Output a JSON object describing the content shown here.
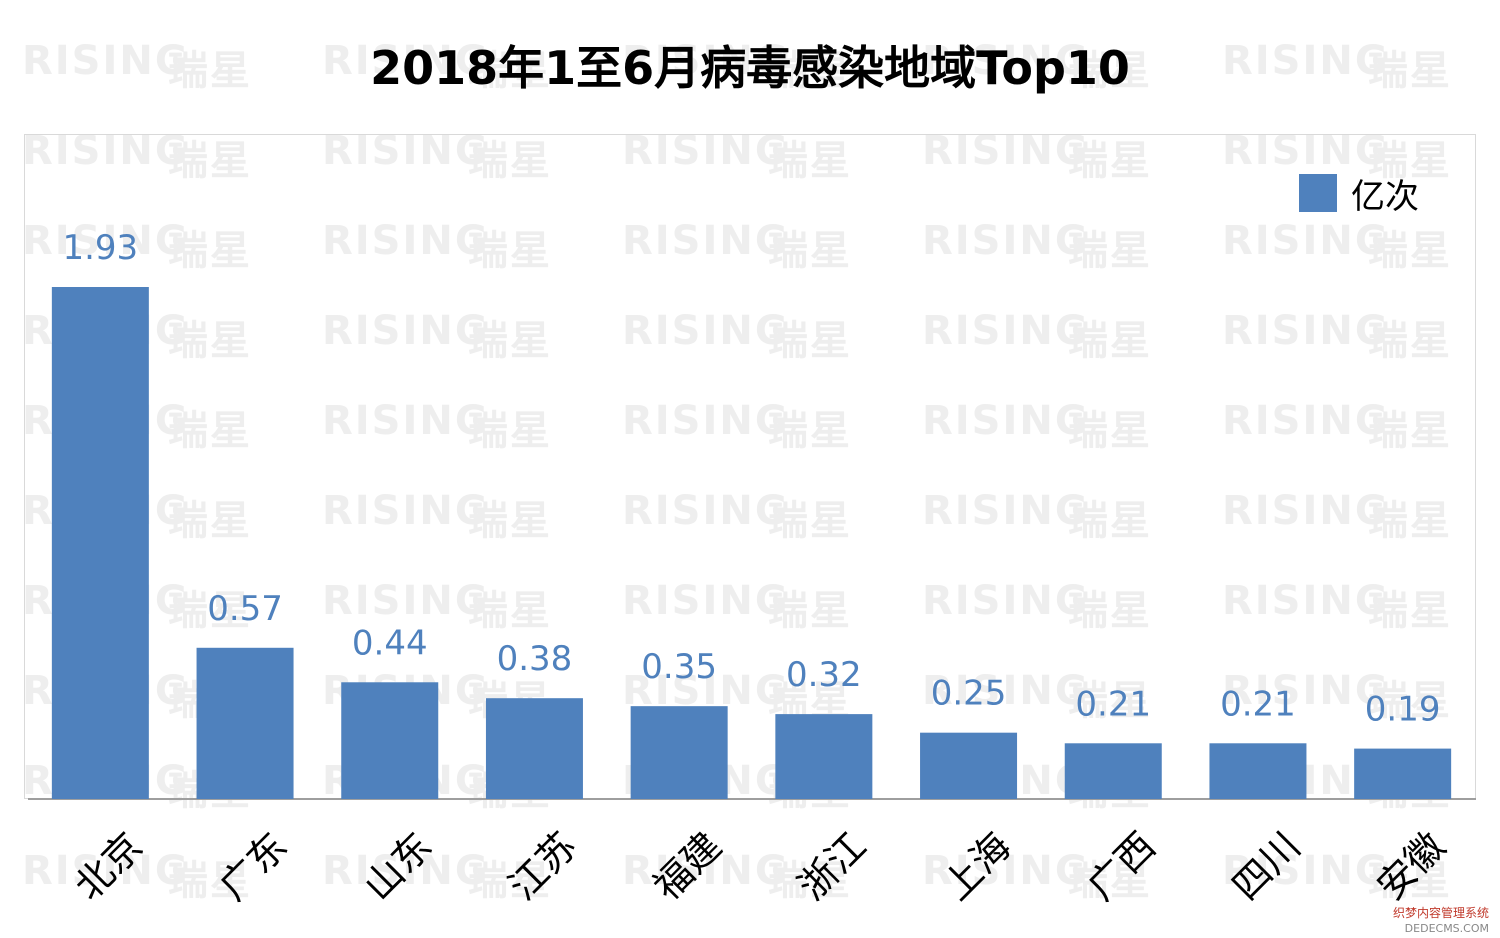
{
  "chart_data": {
    "type": "bar",
    "title": "2018年1至6月病毒感染地域Top10",
    "categories": [
      "北京",
      "广东",
      "山东",
      "江苏",
      "福建",
      "浙江",
      "上海",
      "广西",
      "四川",
      "安徽"
    ],
    "series": [
      {
        "name": "亿次",
        "values": [
          1.93,
          0.57,
          0.44,
          0.38,
          0.35,
          0.32,
          0.25,
          0.21,
          0.21,
          0.19
        ]
      }
    ],
    "ylim": [
      0,
      2.5
    ],
    "grid": false,
    "legend_position": "top-right",
    "bar_color": "#4f81bd",
    "label_color": "#4f81bd"
  },
  "watermark": {
    "latin": "RISING",
    "cjk": "瑞星"
  },
  "footer_watermark": {
    "line1": "织梦内容管理系统",
    "line2": "DEDECMS.COM"
  }
}
